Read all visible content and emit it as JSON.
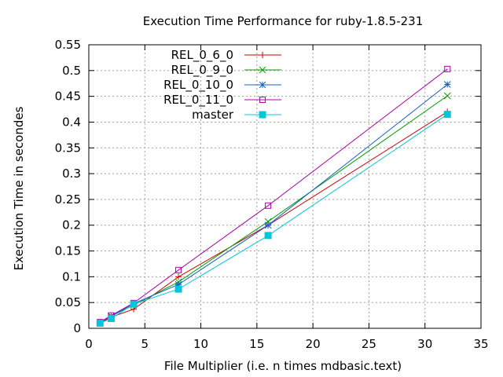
{
  "chart_data": {
    "type": "line",
    "title": "Execution Time Performance for ruby-1.8.5-231",
    "xlabel": "File Multiplier (i.e. n times mdbasic.text)",
    "ylabel": "Execution Time in secondes",
    "xlim": [
      0,
      35
    ],
    "ylim": [
      0,
      0.55
    ],
    "xticks": [
      "0",
      "5",
      "10",
      "15",
      "20",
      "25",
      "30",
      "35"
    ],
    "yticks": [
      "0",
      "0.05",
      "0.1",
      "0.15",
      "0.2",
      "0.25",
      "0.3",
      "0.35",
      "0.4",
      "0.45",
      "0.5",
      "0.55"
    ],
    "grid": true,
    "legend_position": "top-left",
    "x": [
      1,
      2,
      4,
      8,
      16,
      32
    ],
    "series": [
      {
        "name": "REL_0_6_0",
        "color": "#cc0000",
        "marker": "plus",
        "values": [
          0.01,
          0.022,
          0.037,
          0.1,
          0.2,
          0.42
        ]
      },
      {
        "name": "REL_0_9_0",
        "color": "#00a000",
        "marker": "cross",
        "values": [
          0.011,
          0.024,
          0.045,
          0.09,
          0.207,
          0.451
        ]
      },
      {
        "name": "REL_0_10_0",
        "color": "#1060d0",
        "marker": "star",
        "values": [
          0.011,
          0.023,
          0.048,
          0.085,
          0.2,
          0.473
        ]
      },
      {
        "name": "REL_0_11_0",
        "color": "#b000b0",
        "marker": "open-square",
        "values": [
          0.012,
          0.025,
          0.049,
          0.113,
          0.238,
          0.503
        ]
      },
      {
        "name": "master",
        "color": "#00c8d8",
        "marker": "filled-square",
        "values": [
          0.01,
          0.019,
          0.047,
          0.076,
          0.18,
          0.415
        ]
      }
    ]
  }
}
